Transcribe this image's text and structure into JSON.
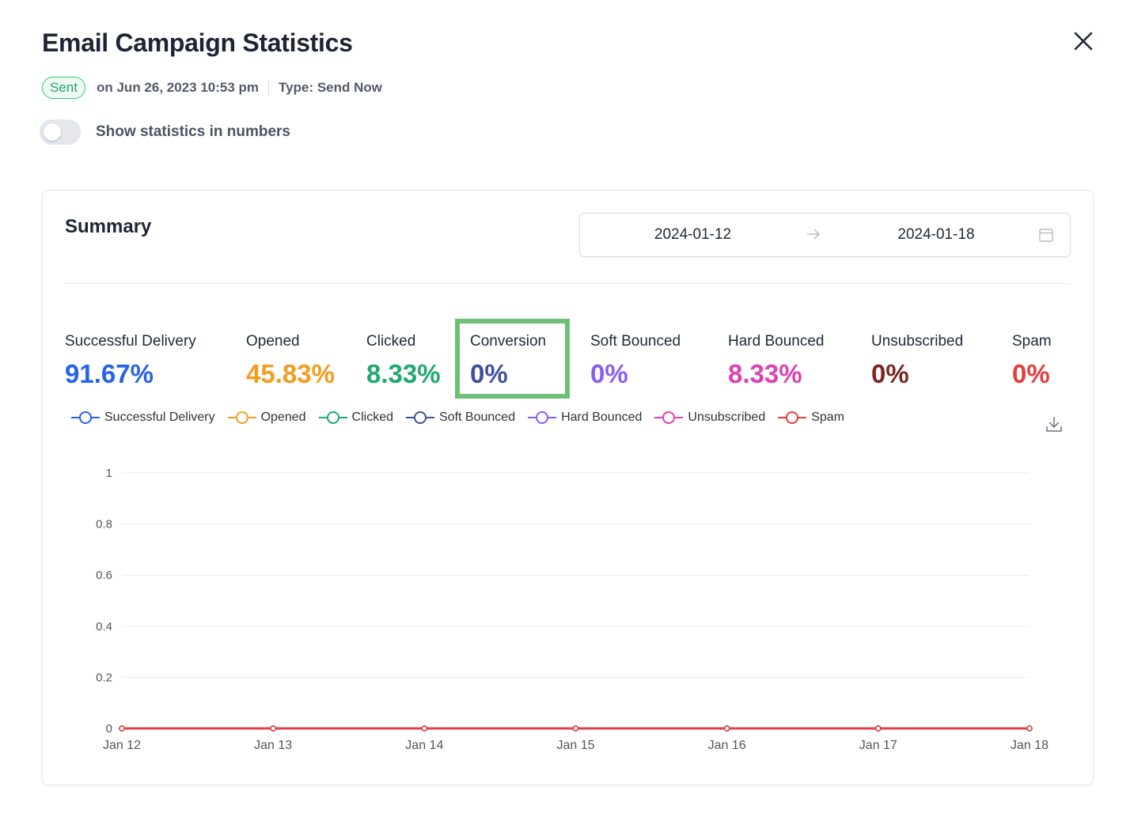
{
  "header": {
    "title": "Email Campaign Statistics",
    "status": "Sent",
    "sent_on": "on Jun 26, 2023 10:53 pm",
    "type": "Type: Send Now"
  },
  "toggle": {
    "label": "Show statistics in numbers",
    "on": false
  },
  "summary": {
    "title": "Summary",
    "date_start": "2024-01-12",
    "date_end": "2024-01-18",
    "stats": [
      {
        "label": "Successful Delivery",
        "value": "91.67%",
        "color": "#2563eb"
      },
      {
        "label": "Opened",
        "value": "45.83%",
        "color": "#f39c1f"
      },
      {
        "label": "Clicked",
        "value": "8.33%",
        "color": "#1faa6e"
      },
      {
        "label": "Conversion",
        "value": "0%",
        "color": "#3f4ea0"
      },
      {
        "label": "Soft Bounced",
        "value": "0%",
        "color": "#8b5cf6"
      },
      {
        "label": "Hard Bounced",
        "value": "8.33%",
        "color": "#e13fb3"
      },
      {
        "label": "Unsubscribed",
        "value": "0%",
        "color": "#7a2620"
      },
      {
        "label": "Spam",
        "value": "0%",
        "color": "#e53e3e"
      }
    ]
  },
  "legend": [
    {
      "name": "Successful Delivery",
      "color": "#2563eb"
    },
    {
      "name": "Opened",
      "color": "#f39c1f"
    },
    {
      "name": "Clicked",
      "color": "#1faa6e"
    },
    {
      "name": "Soft Bounced",
      "color": "#3f4ea0"
    },
    {
      "name": "Hard Bounced",
      "color": "#8b5cf6"
    },
    {
      "name": "Unsubscribed",
      "color": "#e13fb3"
    },
    {
      "name": "Spam",
      "color": "#e53e3e"
    }
  ],
  "chart_data": {
    "type": "line",
    "x": [
      "Jan 12",
      "Jan 13",
      "Jan 14",
      "Jan 15",
      "Jan 16",
      "Jan 17",
      "Jan 18"
    ],
    "y_ticks": [
      "0",
      "0.2",
      "0.4",
      "0.6",
      "0.8",
      "1"
    ],
    "ylim": [
      0,
      1
    ],
    "grid": true,
    "legend_position": "top-left",
    "series": [
      {
        "name": "Successful Delivery",
        "color": "#2563eb",
        "values": [
          0,
          0,
          0,
          0,
          0,
          0,
          0
        ]
      },
      {
        "name": "Opened",
        "color": "#f39c1f",
        "values": [
          0,
          0,
          0,
          0,
          0,
          0,
          0
        ]
      },
      {
        "name": "Clicked",
        "color": "#1faa6e",
        "values": [
          0,
          0,
          0,
          0,
          0,
          0,
          0
        ]
      },
      {
        "name": "Soft Bounced",
        "color": "#3f4ea0",
        "values": [
          0,
          0,
          0,
          0,
          0,
          0,
          0
        ]
      },
      {
        "name": "Hard Bounced",
        "color": "#8b5cf6",
        "values": [
          0,
          0,
          0,
          0,
          0,
          0,
          0
        ]
      },
      {
        "name": "Unsubscribed",
        "color": "#e13fb3",
        "values": [
          0,
          0,
          0,
          0,
          0,
          0,
          0
        ]
      },
      {
        "name": "Spam",
        "color": "#e53e3e",
        "values": [
          0,
          0,
          0,
          0,
          0,
          0,
          0
        ]
      }
    ]
  }
}
